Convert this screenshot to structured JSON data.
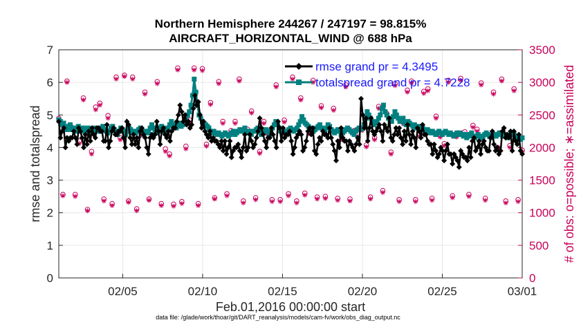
{
  "chart_data": {
    "type": "line",
    "title": "Northern Hemisphere 244267 / 247197 = 98.815%",
    "subtitle": "AIRCRAFT_HORIZONTAL_WIND @ 688 hPa",
    "xlabel": "Feb.01,2016 00:00:00 start",
    "ylabel": "rmse and totalspread",
    "ylabel_right": "# of obs: o=possible; ∗=assimilated",
    "footnote": "data file: /glade/work/thoar/git/DART_reanalysis/models/cam-fv/work/obs_diag_output.nc",
    "x_range": [
      1,
      30
    ],
    "x_ticks": [
      5,
      10,
      15,
      20,
      25,
      30
    ],
    "x_tick_labels": [
      "02/05",
      "02/10",
      "02/15",
      "02/20",
      "02/25",
      "03/01"
    ],
    "ylim": [
      0,
      7
    ],
    "y_ticks": [
      0,
      1,
      2,
      3,
      4,
      5,
      6,
      7
    ],
    "ylim_right": [
      0,
      3500
    ],
    "y_ticks_right": [
      0,
      500,
      1000,
      1500,
      2000,
      2500,
      3000,
      3500
    ],
    "grid": true,
    "legend_position": "top-right",
    "colors": {
      "rmse": "#000000",
      "totalspread": "#008080",
      "obs": "#c8005a",
      "legend_text": "#1a1aff"
    },
    "series": [
      {
        "name": "rmse grand pr = 4.3495",
        "axis": "left",
        "values": [
          4.8,
          4.3,
          4.5,
          4.6,
          4.0,
          4.3,
          4.2,
          4.3,
          4.3,
          4.5,
          4.3,
          4.1,
          4.6,
          4.5,
          4.3,
          4.0,
          4.4,
          4.1,
          4.5,
          4.2,
          4.6,
          4.4,
          4.3,
          4.6,
          4.6,
          4.5,
          4.5,
          4.2,
          4.2,
          4.7,
          4.0,
          4.2,
          4.5,
          4.6,
          4.4,
          4.4,
          4.5,
          4.5,
          4.6,
          4.3,
          4.0,
          4.8,
          4.7,
          4.3,
          4.1,
          4.4,
          4.1,
          4.3,
          4.0,
          4.5,
          4.6,
          4.4,
          4.3,
          4.0,
          3.8,
          4.3,
          4.4,
          4.3,
          4.4,
          4.8,
          4.5,
          4.1,
          4.5,
          4.6,
          4.4,
          4.3,
          4.5,
          4.2,
          4.5,
          4.6,
          4.6,
          4.8,
          5.0,
          5.3,
          5.1,
          4.8,
          5.0,
          4.7,
          4.8,
          4.6,
          4.7,
          5.2,
          5.6,
          5.3,
          5.4,
          5.0,
          4.6,
          4.8,
          4.5,
          4.4,
          4.3,
          4.5,
          4.2,
          4.3,
          4.2,
          4.2,
          4.1,
          4.0,
          4.2,
          3.9,
          4.2,
          3.8,
          4.0,
          4.2,
          3.7,
          3.9,
          4.0,
          4.0,
          4.1,
          3.9,
          3.7,
          4.0,
          4.4,
          3.9,
          4.0,
          4.4,
          4.2,
          4.0,
          4.1,
          4.3,
          4.5,
          4.9,
          4.6,
          4.4,
          4.2,
          4.0,
          4.3,
          4.3,
          4.6,
          4.4,
          4.2,
          4.0,
          4.8,
          4.6,
          4.2,
          4.6,
          4.3,
          4.4,
          4.4,
          4.5,
          4.2,
          3.8,
          4.0,
          4.3,
          4.4,
          4.5,
          4.4,
          3.9,
          4.0,
          4.2,
          4.5,
          4.6,
          4.4,
          4.6,
          3.9,
          3.8,
          4.1,
          4.3,
          4.2,
          4.5,
          4.4,
          4.4,
          4.3,
          4.6,
          4.3,
          4.1,
          3.9,
          3.6,
          4.2,
          4.0,
          4.6,
          4.3,
          4.2,
          4.2,
          3.9,
          4.2,
          4.1,
          4.0,
          3.9,
          4.1,
          4.3,
          4.1,
          5.5,
          5.0,
          4.6,
          4.9,
          4.2,
          4.6,
          4.9,
          4.5,
          4.4,
          4.5,
          4.6,
          4.7,
          4.5,
          4.2,
          4.7,
          4.6,
          4.5,
          4.9,
          4.3,
          4.2,
          4.4,
          4.6,
          4.4,
          4.6,
          4.3,
          4.1,
          4.5,
          4.2,
          4.7,
          4.4,
          4.1,
          4.5,
          4.3,
          4.0,
          4.6,
          4.5,
          4.3,
          4.7,
          4.4,
          4.4,
          4.2,
          4.1,
          4.1,
          3.8,
          4.1,
          3.9,
          3.7,
          3.8,
          4.0,
          3.9,
          3.6,
          3.9,
          4.1,
          3.8,
          3.8,
          3.5,
          3.8,
          3.7,
          3.6,
          3.4,
          3.9,
          3.8,
          3.7,
          3.7,
          3.6,
          4.0,
          3.7,
          4.2,
          4.3,
          3.9,
          4.0,
          4.2,
          3.8,
          4.1,
          4.2,
          4.0,
          3.9,
          3.9,
          4.3,
          4.5,
          4.1,
          3.9,
          4.0,
          3.8,
          3.9,
          4.5,
          4.6,
          4.3,
          4.4,
          4.3,
          4.5,
          3.9,
          4.5,
          4.2,
          4.1,
          4.4,
          3.9,
          3.8
        ]
      },
      {
        "name": "totalspread grand pr = 4.7228",
        "axis": "left",
        "values": [
          4.85,
          4.8,
          4.7,
          4.75,
          4.6,
          4.55,
          4.65,
          4.7,
          4.55,
          4.6,
          4.5,
          4.6,
          4.65,
          4.55,
          4.5,
          4.6,
          4.5,
          4.55,
          4.6,
          4.5,
          4.55,
          4.5,
          4.6,
          4.55,
          4.5,
          4.5,
          4.6,
          4.65,
          4.55,
          4.5,
          4.45,
          4.5,
          4.6,
          4.65,
          4.55,
          4.5,
          4.4,
          4.5,
          4.6,
          4.55,
          4.5,
          4.4,
          4.5,
          4.6,
          4.55,
          4.45,
          4.5,
          4.45,
          4.5,
          4.55,
          4.6,
          4.5,
          4.4,
          4.5,
          4.45,
          4.5,
          4.6,
          4.7,
          4.6,
          4.5,
          4.45,
          4.5,
          4.6,
          4.65,
          4.6,
          4.5,
          4.45,
          4.6,
          4.7,
          4.8,
          4.7,
          4.65,
          4.6,
          4.7,
          4.75,
          4.65,
          4.7,
          4.8,
          4.9,
          5.0,
          5.1,
          5.3,
          5.6,
          6.1,
          5.7,
          5.3,
          5.0,
          4.9,
          4.8,
          4.75,
          4.7,
          4.65,
          4.6,
          4.5,
          4.45,
          4.5,
          4.45,
          4.4,
          4.45,
          4.4,
          4.35,
          4.4,
          4.45,
          4.4,
          4.35,
          4.4,
          4.45,
          4.5,
          4.4,
          4.45,
          4.5,
          4.55,
          4.5,
          4.55,
          4.6,
          4.5,
          4.45,
          4.5,
          4.4,
          4.5,
          4.5,
          4.55,
          4.6,
          4.5,
          4.4,
          4.45,
          4.5,
          4.55,
          4.5,
          4.4,
          4.5,
          4.6,
          4.7,
          4.8,
          4.7,
          4.6,
          4.5,
          4.55,
          4.5,
          4.45,
          4.5,
          4.55,
          4.6,
          4.55,
          4.5,
          4.55,
          4.6,
          4.7,
          4.8,
          4.95,
          4.85,
          4.75,
          4.7,
          4.65,
          4.6,
          4.55,
          4.5,
          4.55,
          4.6,
          4.65,
          4.7,
          4.6,
          4.55,
          4.5,
          4.6,
          4.7,
          4.65,
          4.55,
          4.5,
          4.45,
          4.5,
          4.55,
          4.5,
          4.4,
          4.45,
          4.5,
          4.55,
          4.6,
          4.55,
          4.5,
          4.45,
          4.4,
          4.5,
          4.55,
          4.6,
          4.55,
          4.6,
          4.7,
          4.9,
          5.1,
          5.0,
          4.9,
          4.8,
          4.7,
          4.75,
          4.8,
          4.9,
          5.0,
          5.2,
          5.3,
          5.1,
          5.0,
          4.9,
          4.85,
          4.8,
          4.95,
          5.1,
          5.0,
          4.9,
          4.8,
          4.85,
          4.9,
          4.75,
          4.7,
          4.8,
          4.75,
          4.7,
          4.65,
          4.7,
          4.6,
          4.65,
          4.6,
          4.55,
          4.6,
          4.55,
          4.5,
          4.55,
          4.5,
          4.45,
          4.5,
          4.45,
          4.4,
          4.45,
          4.5,
          4.45,
          4.4,
          4.45,
          4.5,
          4.45,
          4.4,
          4.45,
          4.4,
          4.35,
          4.4,
          4.45,
          4.4,
          4.45,
          4.4,
          4.35,
          4.4,
          4.3,
          4.35,
          4.4,
          4.45,
          4.35,
          4.3,
          4.35,
          4.4,
          4.35,
          4.3,
          4.35,
          4.4,
          4.45,
          4.4,
          4.35,
          4.3,
          4.35,
          4.4,
          4.35,
          4.4,
          4.45,
          4.4,
          4.35,
          4.4,
          4.35,
          4.3,
          4.35,
          4.4,
          4.45,
          4.4,
          4.3,
          4.35,
          4.3,
          4.25,
          4.3
        ]
      },
      {
        "name": "obs_possible",
        "axis": "right",
        "values": [
          2450,
          1280,
          3020,
          2320,
          1280,
          2100,
          2760,
          1050,
          1940,
          2620,
          2680,
          1210,
          2490,
          1140,
          3080,
          2150,
          3110,
          1180,
          3080,
          1060,
          2220,
          2850,
          1210,
          2190,
          3010,
          1140,
          1980,
          1900,
          1130,
          3220,
          1170,
          2020,
          2420,
          3220,
          1140,
          3210,
          2050,
          2690,
          1230,
          3010,
          2400,
          1290,
          2260,
          2400,
          3050,
          1180,
          2280,
          2560,
          1230,
          1940,
          2400,
          2220,
          1200,
          2960,
          1200,
          2420,
          1290,
          3080,
          1180,
          2760,
          1300,
          2240,
          3030,
          1240,
          2640,
          1250,
          2300,
          2600,
          1220,
          2150,
          2960,
          1210,
          2260,
          2160,
          2290,
          2040,
          1240,
          2150,
          2630,
          1340,
          2520,
          1930,
          2980,
          1200,
          2390,
          2880,
          3020,
          1200,
          2200,
          2860,
          2900,
          1220,
          2480,
          2190,
          2060,
          3030,
          1260,
          2190,
          3060,
          2240,
          1280,
          2340,
          2280,
          2990,
          1220,
          2190,
          2850,
          2000,
          3050,
          1180,
          2030,
          2900,
          1200,
          1960
        ]
      },
      {
        "name": "obs_assimilated",
        "axis": "right",
        "values": [
          2400,
          1260,
          3000,
          2280,
          1250,
          2060,
          2730,
          1030,
          1900,
          2580,
          2650,
          1180,
          2450,
          1110,
          3050,
          2120,
          3090,
          1160,
          3050,
          1030,
          2180,
          2820,
          1190,
          2160,
          2980,
          1110,
          1940,
          1870,
          1100,
          3190,
          1140,
          1980,
          2390,
          3190,
          1110,
          3180,
          2020,
          2660,
          1210,
          2980,
          2370,
          1260,
          2230,
          2370,
          3020,
          1150,
          2250,
          2530,
          1200,
          1910,
          2370,
          2190,
          1170,
          2930,
          1170,
          2390,
          1260,
          3050,
          1150,
          2730,
          1270,
          2210,
          3000,
          1210,
          2610,
          1220,
          2270,
          2570,
          1190,
          2120,
          2930,
          1180,
          2230,
          2130,
          2260,
          2010,
          1210,
          2120,
          2600,
          1310,
          2490,
          1900,
          2950,
          1170,
          2360,
          2850,
          2990,
          1170,
          2170,
          2830,
          2870,
          1190,
          2450,
          2160,
          2030,
          3000,
          1230,
          2160,
          3030,
          2210,
          1250,
          2310,
          2250,
          2960,
          1190,
          2160,
          2820,
          1970,
          3020,
          1150,
          2000,
          2870,
          1170,
          1930
        ]
      }
    ]
  }
}
